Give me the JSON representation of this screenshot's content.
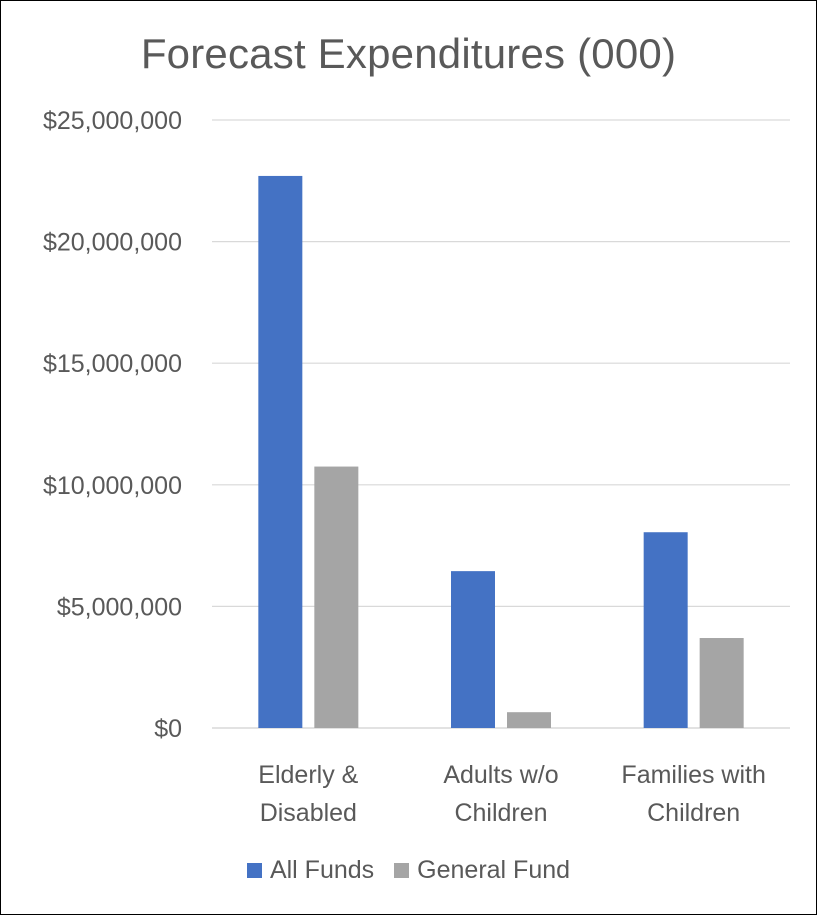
{
  "chart_data": {
    "type": "bar",
    "title": "Forecast Expenditures (000)",
    "xlabel": "",
    "ylabel": "",
    "categories": [
      [
        "Elderly &",
        "Disabled"
      ],
      [
        "Adults w/o",
        "Children"
      ],
      [
        "Families with",
        "Children"
      ]
    ],
    "series": [
      {
        "name": "All Funds",
        "color": "#4472C4",
        "values": [
          22700000,
          6450000,
          8050000
        ]
      },
      {
        "name": "General Fund",
        "color": "#A5A5A5",
        "values": [
          10750000,
          650000,
          3700000
        ]
      }
    ],
    "ylim": [
      0,
      25000000
    ],
    "yticks": [
      0,
      5000000,
      10000000,
      15000000,
      20000000,
      25000000
    ],
    "ytick_labels": [
      "$0",
      "$5,000,000",
      "$10,000,000",
      "$15,000,000",
      "$20,000,000",
      "$25,000,000"
    ],
    "grid": true,
    "legend_position": "bottom"
  }
}
